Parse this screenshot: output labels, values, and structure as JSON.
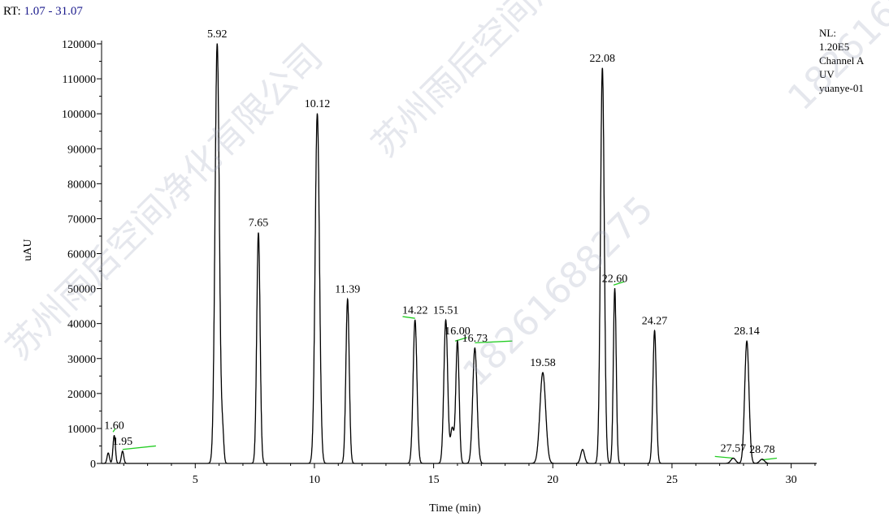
{
  "header": {
    "rt_prefix": "RT:",
    "rt_range": "1.07 - 31.07"
  },
  "info": {
    "nl": "NL:",
    "nl_value": "1.20E5",
    "channel": "Channel A",
    "detector": "UV",
    "sample": "yuanye-01"
  },
  "watermarks": [
    "苏州雨后空间净化有限公司",
    "18261688275",
    "苏州雨后空间净化有限公司",
    "18261688275"
  ],
  "colors": {
    "trace": "#000000",
    "baseline": "#22cc22",
    "rt_range": "#1a1a8c"
  },
  "chart_data": {
    "type": "line",
    "xlabel": "Time (min)",
    "ylabel": "uAU",
    "xlim": [
      1.07,
      31.07
    ],
    "ylim": [
      0,
      120000
    ],
    "xticks": [
      5,
      10,
      15,
      20,
      25,
      30
    ],
    "yticks": [
      0,
      10000,
      20000,
      30000,
      40000,
      50000,
      60000,
      70000,
      80000,
      90000,
      100000,
      110000,
      120000
    ],
    "peaks": [
      {
        "rt": 1.6,
        "label": "1.60",
        "height": 8000,
        "width": 0.05
      },
      {
        "rt": 1.95,
        "label": "1.95",
        "height": 3500,
        "width": 0.05
      },
      {
        "rt": 5.92,
        "label": "5.92",
        "height": 120000,
        "width": 0.09
      },
      {
        "rt": 7.65,
        "label": "7.65",
        "height": 66000,
        "width": 0.07
      },
      {
        "rt": 10.12,
        "label": "10.12",
        "height": 100000,
        "width": 0.09
      },
      {
        "rt": 11.39,
        "label": "11.39",
        "height": 47000,
        "width": 0.07
      },
      {
        "rt": 14.22,
        "label": "14.22",
        "height": 41000,
        "width": 0.08
      },
      {
        "rt": 15.51,
        "label": "15.51",
        "height": 41000,
        "width": 0.08
      },
      {
        "rt": 16.0,
        "label": "16.00",
        "height": 35000,
        "width": 0.07
      },
      {
        "rt": 16.73,
        "label": "16.73",
        "height": 33000,
        "width": 0.09
      },
      {
        "rt": 19.58,
        "label": "19.58",
        "height": 26000,
        "width": 0.12
      },
      {
        "rt": 22.08,
        "label": "22.08",
        "height": 113000,
        "width": 0.08
      },
      {
        "rt": 22.6,
        "label": "22.60",
        "height": 50000,
        "width": 0.06
      },
      {
        "rt": 24.27,
        "label": "24.27",
        "height": 38000,
        "width": 0.07
      },
      {
        "rt": 27.57,
        "label": "27.57",
        "height": 1500,
        "width": 0.1
      },
      {
        "rt": 28.14,
        "label": "28.14",
        "height": 35000,
        "width": 0.09
      },
      {
        "rt": 28.78,
        "label": "28.78",
        "height": 1200,
        "width": 0.1
      }
    ],
    "minor_peaks": [
      {
        "rt": 1.35,
        "height": 3000,
        "width": 0.05
      },
      {
        "rt": 6.15,
        "height": 8000,
        "width": 0.05
      },
      {
        "rt": 15.78,
        "height": 10000,
        "width": 0.07
      },
      {
        "rt": 21.25,
        "height": 4000,
        "width": 0.08
      }
    ],
    "baselines": [
      {
        "x1": 1.55,
        "y1": 9000,
        "x2": 1.65,
        "y2": 10000
      },
      {
        "x1": 1.95,
        "y1": 4000,
        "x2": 3.35,
        "y2": 5000
      },
      {
        "x1": 13.7,
        "y1": 42000,
        "x2": 14.22,
        "y2": 41500
      },
      {
        "x1": 15.9,
        "y1": 35000,
        "x2": 16.4,
        "y2": 36000
      },
      {
        "x1": 16.73,
        "y1": 34500,
        "x2": 18.3,
        "y2": 35000
      },
      {
        "x1": 22.55,
        "y1": 51000,
        "x2": 23.0,
        "y2": 52000
      },
      {
        "x1": 26.8,
        "y1": 2000,
        "x2": 27.57,
        "y2": 1500
      },
      {
        "x1": 28.78,
        "y1": 1000,
        "x2": 29.4,
        "y2": 1500
      }
    ]
  }
}
